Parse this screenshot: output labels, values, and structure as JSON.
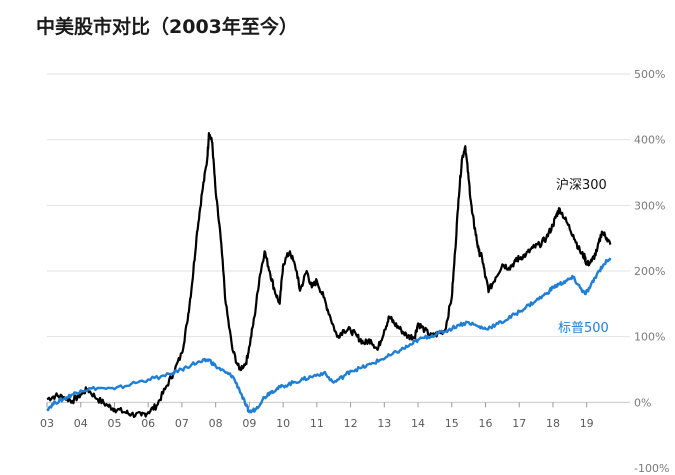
{
  "chart_data": {
    "type": "line",
    "title": "中美股市对比（2003年至今）",
    "xlabel": "",
    "ylabel": "",
    "x_tick_labels": [
      "03",
      "04",
      "05",
      "06",
      "07",
      "08",
      "09",
      "10",
      "11",
      "12",
      "13",
      "14",
      "15",
      "16",
      "17",
      "18",
      "19"
    ],
    "y_tick_labels": [
      "500%",
      "400%",
      "300%",
      "200%",
      "100%",
      "0%",
      "-100%"
    ],
    "xlim": [
      2003.0,
      2019.75
    ],
    "ylim": [
      -100,
      500
    ],
    "grid": true,
    "series": [
      {
        "name": "沪深300",
        "color": "#000000",
        "x": [
          2003.0,
          2003.25,
          2003.5,
          2003.75,
          2004.0,
          2004.2,
          2004.5,
          2004.8,
          2005.0,
          2005.3,
          2005.5,
          2005.8,
          2006.0,
          2006.25,
          2006.5,
          2006.75,
          2007.0,
          2007.15,
          2007.3,
          2007.45,
          2007.6,
          2007.75,
          2007.8,
          2007.9,
          2008.0,
          2008.15,
          2008.3,
          2008.5,
          2008.7,
          2008.9,
          2009.0,
          2009.15,
          2009.3,
          2009.45,
          2009.6,
          2009.75,
          2009.9,
          2010.0,
          2010.2,
          2010.4,
          2010.5,
          2010.7,
          2010.85,
          2011.0,
          2011.2,
          2011.4,
          2011.6,
          2011.8,
          2012.0,
          2012.2,
          2012.4,
          2012.6,
          2012.8,
          2013.0,
          2013.15,
          2013.3,
          2013.5,
          2013.7,
          2013.9,
          2014.0,
          2014.2,
          2014.4,
          2014.6,
          2014.8,
          2015.0,
          2015.1,
          2015.2,
          2015.3,
          2015.4,
          2015.5,
          2015.6,
          2015.7,
          2015.8,
          2015.9,
          2016.0,
          2016.1,
          2016.3,
          2016.5,
          2016.7,
          2016.9,
          2017.0,
          2017.2,
          2017.4,
          2017.6,
          2017.8,
          2018.0,
          2018.1,
          2018.2,
          2018.4,
          2018.6,
          2018.8,
          2018.95,
          2019.0,
          2019.15,
          2019.3,
          2019.45,
          2019.6,
          2019.7
        ],
        "y": [
          5,
          10,
          8,
          2,
          12,
          20,
          5,
          -5,
          -10,
          -15,
          -18,
          -20,
          -15,
          -5,
          20,
          45,
          75,
          120,
          180,
          260,
          320,
          370,
          410,
          395,
          320,
          250,
          150,
          80,
          50,
          60,
          85,
          130,
          190,
          230,
          200,
          170,
          150,
          210,
          230,
          200,
          170,
          200,
          175,
          185,
          160,
          130,
          100,
          110,
          110,
          100,
          90,
          95,
          80,
          110,
          130,
          120,
          110,
          100,
          100,
          120,
          110,
          100,
          105,
          110,
          160,
          230,
          310,
          370,
          390,
          340,
          290,
          260,
          230,
          220,
          190,
          170,
          190,
          210,
          205,
          215,
          220,
          225,
          235,
          240,
          250,
          270,
          285,
          295,
          275,
          255,
          230,
          220,
          210,
          215,
          230,
          260,
          250,
          240
        ]
      },
      {
        "name": "标普500",
        "color": "#1f7fd6",
        "x": [
          2003.0,
          2003.25,
          2003.5,
          2003.75,
          2004.0,
          2004.5,
          2005.0,
          2005.5,
          2006.0,
          2006.5,
          2007.0,
          2007.3,
          2007.6,
          2007.8,
          2008.0,
          2008.3,
          2008.5,
          2008.7,
          2008.9,
          2009.0,
          2009.2,
          2009.4,
          2009.6,
          2009.8,
          2010.0,
          2010.3,
          2010.6,
          2010.9,
          2011.2,
          2011.5,
          2011.8,
          2012.0,
          2012.3,
          2012.6,
          2012.9,
          2013.2,
          2013.5,
          2013.8,
          2014.0,
          2014.3,
          2014.6,
          2014.9,
          2015.2,
          2015.5,
          2015.8,
          2016.0,
          2016.3,
          2016.6,
          2016.9,
          2017.2,
          2017.5,
          2017.8,
          2018.0,
          2018.2,
          2018.4,
          2018.6,
          2018.8,
          2018.95,
          2019.1,
          2019.3,
          2019.5,
          2019.7
        ],
        "y": [
          -10,
          0,
          5,
          12,
          18,
          22,
          20,
          28,
          35,
          40,
          50,
          58,
          62,
          65,
          55,
          45,
          40,
          20,
          -5,
          -15,
          -10,
          5,
          15,
          20,
          25,
          30,
          35,
          40,
          45,
          30,
          40,
          48,
          52,
          58,
          65,
          72,
          80,
          88,
          95,
          100,
          105,
          110,
          118,
          122,
          115,
          112,
          118,
          125,
          135,
          145,
          155,
          165,
          175,
          180,
          185,
          190,
          175,
          165,
          175,
          195,
          210,
          220
        ]
      }
    ]
  }
}
